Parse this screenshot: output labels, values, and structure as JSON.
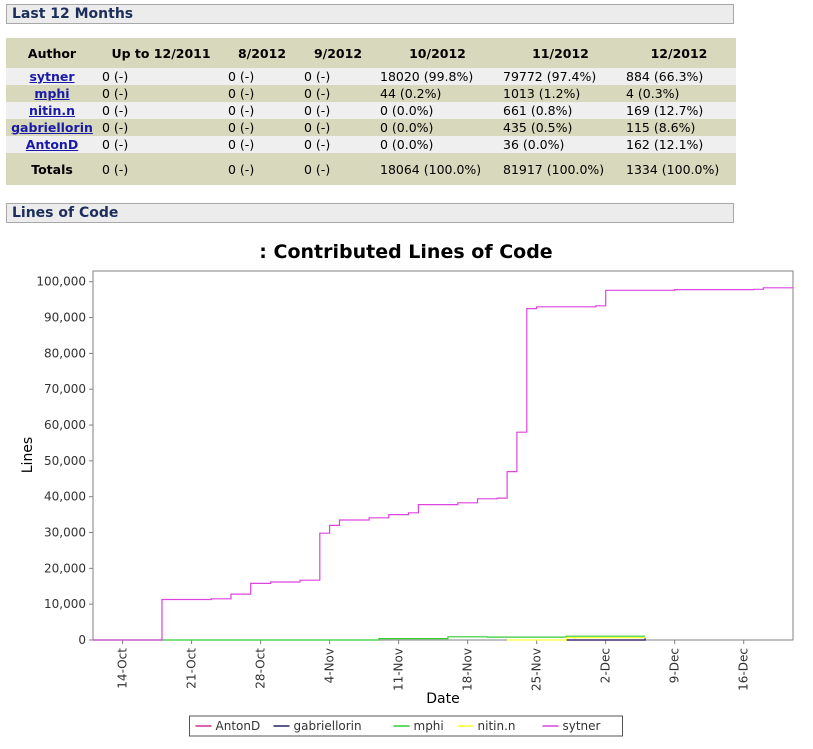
{
  "sections": {
    "last12": "Last 12 Months",
    "loc": "Lines of Code"
  },
  "table": {
    "headers": [
      "Author",
      "Up to 12/2011",
      "8/2012",
      "9/2012",
      "10/2012",
      "11/2012",
      "12/2012"
    ],
    "rows": [
      {
        "author": "sytner",
        "cells": [
          "0 (-)",
          "0 (-)",
          "0 (-)",
          "18020 (99.8%)",
          "79772 (97.4%)",
          "884 (66.3%)"
        ]
      },
      {
        "author": "mphi",
        "cells": [
          "0 (-)",
          "0 (-)",
          "0 (-)",
          "44 (0.2%)",
          "1013 (1.2%)",
          "4 (0.3%)"
        ]
      },
      {
        "author": "nitin.n",
        "cells": [
          "0 (-)",
          "0 (-)",
          "0 (-)",
          "0 (0.0%)",
          "661 (0.8%)",
          "169 (12.7%)"
        ]
      },
      {
        "author": "gabriellorin",
        "cells": [
          "0 (-)",
          "0 (-)",
          "0 (-)",
          "0 (0.0%)",
          "435 (0.5%)",
          "115 (8.6%)"
        ]
      },
      {
        "author": "AntonD",
        "cells": [
          "0 (-)",
          "0 (-)",
          "0 (-)",
          "0 (0.0%)",
          "36 (0.0%)",
          "162 (12.1%)"
        ]
      }
    ],
    "totals": {
      "label": "Totals",
      "cells": [
        "0 (-)",
        "0 (-)",
        "0 (-)",
        "18064 (100.0%)",
        "81917 (100.0%)",
        "1334 (100.0%)"
      ]
    }
  },
  "chart_data": {
    "type": "line",
    "title": ": Contributed Lines of Code",
    "xlabel": "Date",
    "ylabel": "Lines",
    "xlim": [
      "2012-10-11",
      "2012-12-21"
    ],
    "ylim": [
      0,
      103000
    ],
    "xticks": [
      "14-Oct",
      "21-Oct",
      "28-Oct",
      "4-Nov",
      "11-Nov",
      "18-Nov",
      "25-Nov",
      "2-Dec",
      "9-Dec",
      "16-Dec"
    ],
    "xtick_dates": [
      "2012-10-14",
      "2012-10-21",
      "2012-10-28",
      "2012-11-04",
      "2012-11-11",
      "2012-11-18",
      "2012-11-25",
      "2012-12-02",
      "2012-12-09",
      "2012-12-16"
    ],
    "yticks": [
      "0",
      "10,000",
      "20,000",
      "30,000",
      "40,000",
      "50,000",
      "60,000",
      "70,000",
      "80,000",
      "90,000",
      "100,000"
    ],
    "ytick_values": [
      0,
      10000,
      20000,
      30000,
      40000,
      50000,
      60000,
      70000,
      80000,
      90000,
      100000
    ],
    "grid": false,
    "legend_position": "bottom",
    "series": [
      {
        "name": "AntonD",
        "color": "#cc3399",
        "step": true,
        "points": [
          [
            "2012-11-28",
            0
          ],
          [
            "2012-12-06",
            200
          ]
        ]
      },
      {
        "name": "gabriellorin",
        "color": "#222266",
        "step": true,
        "points": [
          [
            "2012-11-28",
            0
          ],
          [
            "2012-12-06",
            550
          ]
        ]
      },
      {
        "name": "mphi",
        "color": "#33cc33",
        "step": true,
        "points": [
          [
            "2012-10-11",
            0
          ],
          [
            "2012-11-05",
            0
          ],
          [
            "2012-11-09",
            400
          ],
          [
            "2012-11-16",
            900
          ],
          [
            "2012-11-20",
            800
          ],
          [
            "2012-11-28",
            1050
          ],
          [
            "2012-12-06",
            1060
          ]
        ]
      },
      {
        "name": "nitin.n",
        "color": "#ffff33",
        "step": true,
        "points": [
          [
            "2012-11-22",
            0
          ],
          [
            "2012-11-28",
            660
          ],
          [
            "2012-12-06",
            830
          ]
        ]
      },
      {
        "name": "sytner",
        "color": "#dd44dd",
        "step": true,
        "points": [
          [
            "2012-10-11",
            0
          ],
          [
            "2012-10-18",
            0
          ],
          [
            "2012-10-18",
            11300
          ],
          [
            "2012-10-23",
            11500
          ],
          [
            "2012-10-25",
            12800
          ],
          [
            "2012-10-27",
            15800
          ],
          [
            "2012-10-29",
            16200
          ],
          [
            "2012-11-01",
            16700
          ],
          [
            "2012-11-03",
            17500
          ],
          [
            "2012-11-03",
            29800
          ],
          [
            "2012-11-04",
            32000
          ],
          [
            "2012-11-05",
            33500
          ],
          [
            "2012-11-08",
            34100
          ],
          [
            "2012-11-10",
            35000
          ],
          [
            "2012-11-12",
            35500
          ],
          [
            "2012-11-13",
            37800
          ],
          [
            "2012-11-17",
            38300
          ],
          [
            "2012-11-19",
            39400
          ],
          [
            "2012-11-21",
            39600
          ],
          [
            "2012-11-22",
            40000
          ],
          [
            "2012-11-22",
            47000
          ],
          [
            "2012-11-23",
            47500
          ],
          [
            "2012-11-23",
            58000
          ],
          [
            "2012-11-24",
            59500
          ],
          [
            "2012-11-24",
            92500
          ],
          [
            "2012-11-25",
            93000
          ],
          [
            "2012-12-01",
            93300
          ],
          [
            "2012-12-02",
            97600
          ],
          [
            "2012-12-09",
            97800
          ],
          [
            "2012-12-17",
            97900
          ],
          [
            "2012-12-18",
            98300
          ],
          [
            "2012-12-21",
            98500
          ]
        ]
      }
    ]
  }
}
